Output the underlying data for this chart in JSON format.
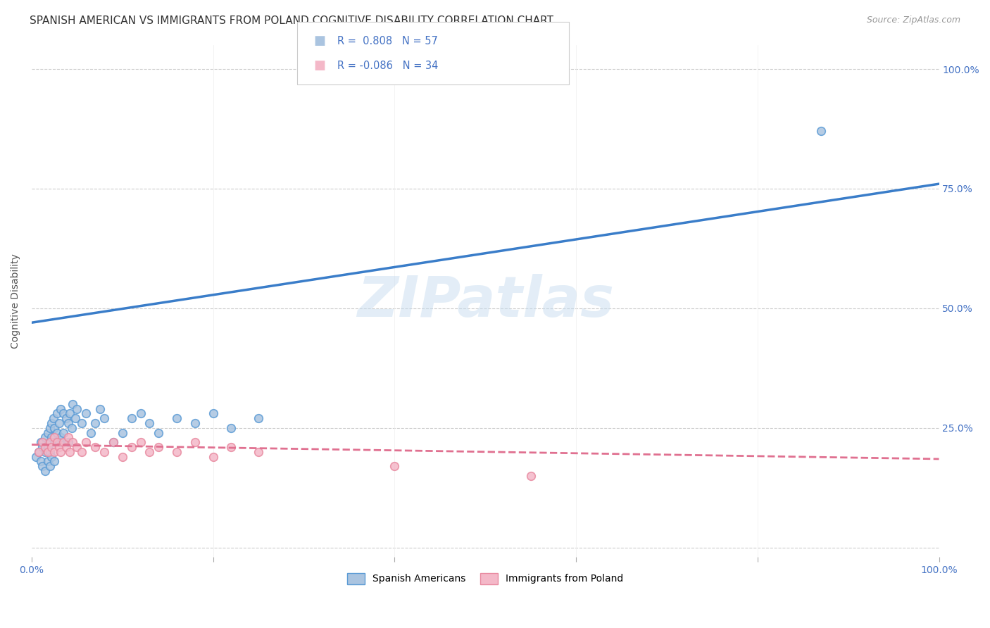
{
  "title": "SPANISH AMERICAN VS IMMIGRANTS FROM POLAND COGNITIVE DISABILITY CORRELATION CHART",
  "source": "Source: ZipAtlas.com",
  "ylabel": "Cognitive Disability",
  "xlim": [
    0.0,
    1.0
  ],
  "ylim": [
    -0.02,
    1.05
  ],
  "xticks": [
    0.0,
    0.2,
    0.4,
    0.6,
    0.8,
    1.0
  ],
  "xticklabels": [
    "0.0%",
    "",
    "",
    "",
    "",
    "100.0%"
  ],
  "ytick_positions": [
    0.0,
    0.25,
    0.5,
    0.75,
    1.0
  ],
  "ytick_labels": [
    "",
    "25.0%",
    "50.0%",
    "75.0%",
    "100.0%"
  ],
  "watermark": "ZIPatlas",
  "blue_R": 0.808,
  "blue_N": 57,
  "pink_R": -0.086,
  "pink_N": 34,
  "blue_color": "#aac4e0",
  "pink_color": "#f4b8c8",
  "blue_edge_color": "#5b9bd5",
  "pink_edge_color": "#e88aa0",
  "blue_line_color": "#3a7dc9",
  "pink_line_color": "#e07090",
  "legend_label_blue": "Spanish Americans",
  "legend_label_pink": "Immigrants from Poland",
  "tick_color": "#4472c4",
  "blue_scatter_x": [
    0.005,
    0.008,
    0.01,
    0.01,
    0.012,
    0.012,
    0.015,
    0.015,
    0.015,
    0.018,
    0.018,
    0.018,
    0.02,
    0.02,
    0.02,
    0.02,
    0.022,
    0.022,
    0.022,
    0.024,
    0.025,
    0.025,
    0.025,
    0.028,
    0.028,
    0.03,
    0.03,
    0.032,
    0.032,
    0.035,
    0.035,
    0.038,
    0.04,
    0.04,
    0.042,
    0.044,
    0.045,
    0.048,
    0.05,
    0.055,
    0.06,
    0.065,
    0.07,
    0.075,
    0.08,
    0.09,
    0.1,
    0.11,
    0.12,
    0.13,
    0.14,
    0.16,
    0.18,
    0.2,
    0.22,
    0.25,
    0.87
  ],
  "blue_scatter_y": [
    0.19,
    0.2,
    0.18,
    0.22,
    0.21,
    0.17,
    0.23,
    0.2,
    0.16,
    0.24,
    0.21,
    0.18,
    0.25,
    0.22,
    0.2,
    0.17,
    0.26,
    0.23,
    0.19,
    0.27,
    0.25,
    0.22,
    0.18,
    0.28,
    0.24,
    0.26,
    0.22,
    0.29,
    0.23,
    0.28,
    0.24,
    0.27,
    0.26,
    0.22,
    0.28,
    0.25,
    0.3,
    0.27,
    0.29,
    0.26,
    0.28,
    0.24,
    0.26,
    0.29,
    0.27,
    0.22,
    0.24,
    0.27,
    0.28,
    0.26,
    0.24,
    0.27,
    0.26,
    0.28,
    0.25,
    0.27,
    0.87
  ],
  "pink_scatter_x": [
    0.008,
    0.012,
    0.015,
    0.018,
    0.02,
    0.022,
    0.025,
    0.025,
    0.028,
    0.03,
    0.032,
    0.035,
    0.038,
    0.04,
    0.042,
    0.045,
    0.05,
    0.055,
    0.06,
    0.07,
    0.08,
    0.09,
    0.1,
    0.11,
    0.12,
    0.13,
    0.14,
    0.16,
    0.18,
    0.2,
    0.22,
    0.25,
    0.4,
    0.55
  ],
  "pink_scatter_y": [
    0.2,
    0.22,
    0.21,
    0.2,
    0.22,
    0.21,
    0.23,
    0.2,
    0.22,
    0.21,
    0.2,
    0.22,
    0.21,
    0.23,
    0.2,
    0.22,
    0.21,
    0.2,
    0.22,
    0.21,
    0.2,
    0.22,
    0.19,
    0.21,
    0.22,
    0.2,
    0.21,
    0.2,
    0.22,
    0.19,
    0.21,
    0.2,
    0.17,
    0.15
  ],
  "blue_trendline_x": [
    0.0,
    1.0
  ],
  "blue_trendline_y": [
    0.47,
    0.76
  ],
  "pink_trendline_x": [
    0.0,
    1.0
  ],
  "pink_trendline_y": [
    0.215,
    0.185
  ],
  "grid_color": "#cccccc",
  "background_color": "#ffffff",
  "title_fontsize": 11,
  "axis_label_fontsize": 10,
  "tick_fontsize": 10,
  "marker_size": 70,
  "marker_linewidth": 1.2
}
